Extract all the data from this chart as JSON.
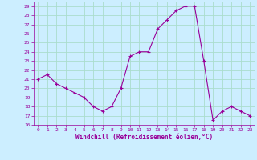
{
  "x": [
    0,
    1,
    2,
    3,
    4,
    5,
    6,
    7,
    8,
    9,
    10,
    11,
    12,
    13,
    14,
    15,
    16,
    17,
    18,
    19,
    20,
    21,
    22,
    23
  ],
  "y": [
    21,
    21.5,
    20.5,
    20,
    19.5,
    19,
    18,
    17.5,
    18,
    20,
    23.5,
    24,
    24,
    26.5,
    27.5,
    28.5,
    29,
    29,
    23,
    16.5,
    17.5,
    18,
    17.5,
    17
  ],
  "line_color": "#990099",
  "marker_color": "#990099",
  "bg_color": "#cceeff",
  "grid_color": "#aaddcc",
  "xlabel": "Windchill (Refroidissement éolien,°C)",
  "ylim": [
    16,
    29.5
  ],
  "xlim": [
    -0.5,
    23.5
  ],
  "yticks": [
    16,
    17,
    18,
    19,
    20,
    21,
    22,
    23,
    24,
    25,
    26,
    27,
    28,
    29
  ],
  "xticks": [
    0,
    1,
    2,
    3,
    4,
    5,
    6,
    7,
    8,
    9,
    10,
    11,
    12,
    13,
    14,
    15,
    16,
    17,
    18,
    19,
    20,
    21,
    22,
    23
  ],
  "tick_color": "#990099",
  "label_color": "#990099"
}
